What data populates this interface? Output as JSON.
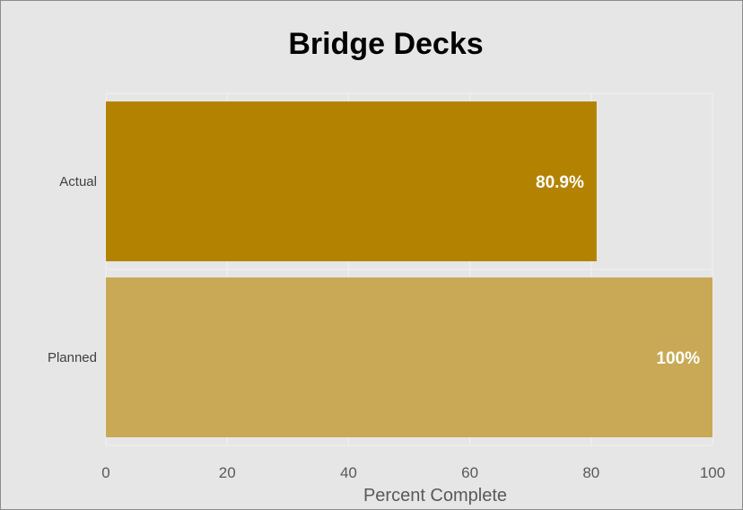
{
  "chart_data": {
    "type": "bar",
    "orientation": "horizontal",
    "title": "Bridge Decks",
    "xlabel": "Percent Complete",
    "ylabel": "",
    "categories": [
      "Actual",
      "Planned"
    ],
    "values": [
      80.9,
      100
    ],
    "data_labels": [
      "80.9%",
      "100%"
    ],
    "colors": [
      "#b38300",
      "#c9a955"
    ],
    "xlim": [
      0,
      100
    ],
    "xticks": [
      "0",
      "20",
      "40",
      "60",
      "80",
      "100"
    ],
    "grid": true,
    "legend": "none"
  }
}
